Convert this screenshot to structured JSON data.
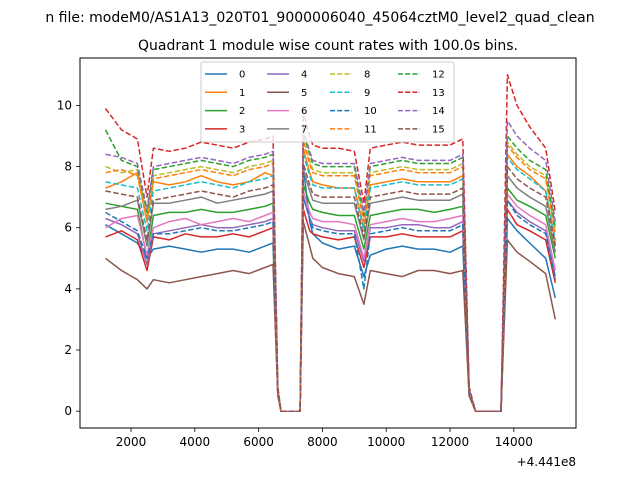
{
  "figure": {
    "suptitle": "n file: modeM0/AS1A13_020T01_9000006040_45064cztM0_level2_quad_clean",
    "title": "Quadrant 1 module wise count rates with 100.0s bins.",
    "offset_label": "+4.441e8"
  },
  "chart_data": {
    "type": "line",
    "title": "Quadrant 1 module wise count rates with 100.0s bins.",
    "xlabel": "",
    "ylabel": "",
    "x_offset": 444100000,
    "xlim": [
      400,
      15950
    ],
    "ylim": [
      -0.55,
      11.55
    ],
    "xticks": [
      2000,
      4000,
      6000,
      8000,
      10000,
      12000,
      14000
    ],
    "xtick_labels": [
      "2000",
      "4000",
      "6000",
      "8000",
      "10000",
      "12000",
      "14000"
    ],
    "yticks": [
      0,
      2,
      4,
      6,
      8,
      10
    ],
    "ytick_labels": [
      "0",
      "2",
      "4",
      "6",
      "8",
      "10"
    ],
    "grid": false,
    "legend": {
      "placement": "top-center",
      "columns": 4
    },
    "x": [
      1200,
      1700,
      2200,
      2500,
      2700,
      3200,
      3700,
      4200,
      4700,
      5200,
      5700,
      6200,
      6450,
      6600,
      6700,
      7000,
      7300,
      7400,
      7600,
      7700,
      8000,
      8500,
      9000,
      9300,
      9500,
      10000,
      10500,
      11000,
      11500,
      12000,
      12400,
      12600,
      12800,
      13200,
      13600,
      13800,
      14100,
      14500,
      15000,
      15300
    ],
    "series": [
      {
        "name": "0",
        "color": "#1f77b4",
        "dashed": false,
        "values": [
          6.1,
          5.8,
          5.5,
          5.0,
          5.3,
          5.4,
          5.3,
          5.2,
          5.3,
          5.3,
          5.2,
          5.4,
          5.5,
          0.6,
          0.0,
          0.0,
          0.0,
          8.0,
          6.2,
          5.8,
          5.5,
          5.3,
          5.4,
          4.4,
          5.1,
          5.3,
          5.4,
          5.3,
          5.3,
          5.2,
          5.4,
          0.6,
          0.0,
          0.0,
          0.0,
          6.3,
          5.9,
          5.5,
          5.0,
          3.7
        ]
      },
      {
        "name": "1",
        "color": "#ff7f0e",
        "dashed": false,
        "values": [
          7.3,
          7.5,
          7.8,
          6.2,
          7.5,
          7.4,
          7.5,
          7.7,
          7.5,
          7.4,
          7.5,
          7.8,
          7.7,
          0.7,
          0.0,
          0.0,
          0.0,
          8.6,
          7.8,
          7.5,
          7.4,
          7.3,
          7.3,
          6.0,
          7.4,
          7.5,
          7.6,
          7.5,
          7.5,
          7.5,
          7.7,
          0.7,
          0.0,
          0.0,
          0.0,
          8.4,
          8.0,
          7.7,
          7.2,
          5.5
        ]
      },
      {
        "name": "2",
        "color": "#2ca02c",
        "dashed": false,
        "values": [
          6.8,
          6.7,
          6.6,
          5.0,
          6.4,
          6.5,
          6.5,
          6.6,
          6.5,
          6.5,
          6.6,
          6.7,
          6.8,
          0.6,
          0.0,
          0.0,
          0.0,
          7.4,
          6.8,
          6.6,
          6.5,
          6.4,
          6.4,
          5.3,
          6.4,
          6.5,
          6.6,
          6.6,
          6.5,
          6.6,
          6.7,
          0.6,
          0.0,
          0.0,
          0.0,
          7.3,
          6.9,
          6.7,
          6.4,
          5.0
        ]
      },
      {
        "name": "3",
        "color": "#d62728",
        "dashed": false,
        "values": [
          5.7,
          5.9,
          5.6,
          4.6,
          5.7,
          5.6,
          5.8,
          5.7,
          5.7,
          5.8,
          5.7,
          5.9,
          6.0,
          0.6,
          0.0,
          0.0,
          0.0,
          6.6,
          5.9,
          5.8,
          5.7,
          5.6,
          5.7,
          4.7,
          5.7,
          5.7,
          5.8,
          5.7,
          5.7,
          5.7,
          5.9,
          0.6,
          0.0,
          0.0,
          0.0,
          6.6,
          6.1,
          5.9,
          5.6,
          4.2
        ]
      },
      {
        "name": "4",
        "color": "#9467bd",
        "dashed": false,
        "values": [
          6.3,
          6.1,
          5.8,
          4.8,
          5.8,
          5.9,
          6.0,
          6.1,
          6.0,
          6.0,
          6.1,
          6.2,
          6.3,
          0.6,
          0.0,
          0.0,
          0.0,
          7.0,
          6.3,
          6.1,
          6.0,
          5.9,
          5.9,
          4.9,
          6.0,
          6.0,
          6.1,
          6.1,
          6.0,
          6.0,
          6.2,
          0.6,
          0.0,
          0.0,
          0.0,
          6.9,
          6.5,
          6.2,
          5.9,
          4.4
        ]
      },
      {
        "name": "5",
        "color": "#8c564b",
        "dashed": false,
        "values": [
          5.0,
          4.6,
          4.3,
          4.0,
          4.3,
          4.2,
          4.3,
          4.4,
          4.5,
          4.6,
          4.5,
          4.7,
          4.8,
          0.5,
          0.0,
          0.0,
          0.0,
          6.2,
          5.4,
          5.0,
          4.7,
          4.5,
          4.4,
          3.5,
          4.6,
          4.5,
          4.4,
          4.6,
          4.6,
          4.5,
          4.6,
          0.5,
          0.0,
          0.0,
          0.0,
          5.6,
          5.2,
          4.9,
          4.5,
          3.0
        ]
      },
      {
        "name": "6",
        "color": "#e377c2",
        "dashed": false,
        "values": [
          6.0,
          6.3,
          6.4,
          5.1,
          6.0,
          6.2,
          6.3,
          6.1,
          6.2,
          6.3,
          6.2,
          6.4,
          6.5,
          0.6,
          0.0,
          0.0,
          0.0,
          7.2,
          6.5,
          6.3,
          6.2,
          6.2,
          6.1,
          5.0,
          6.1,
          6.2,
          6.3,
          6.2,
          6.2,
          6.3,
          6.4,
          0.6,
          0.0,
          0.0,
          0.0,
          7.1,
          6.7,
          6.4,
          6.1,
          4.6
        ]
      },
      {
        "name": "7",
        "color": "#7f7f7f",
        "dashed": false,
        "values": [
          6.6,
          6.7,
          6.9,
          5.4,
          6.8,
          6.8,
          6.9,
          7.0,
          6.8,
          6.9,
          7.0,
          7.1,
          7.2,
          0.6,
          0.0,
          0.0,
          0.0,
          7.9,
          7.2,
          6.9,
          6.8,
          6.8,
          6.8,
          5.6,
          6.8,
          6.9,
          7.0,
          6.9,
          6.9,
          6.9,
          7.1,
          0.6,
          0.0,
          0.0,
          0.0,
          7.7,
          7.3,
          7.0,
          6.7,
          5.2
        ]
      },
      {
        "name": "8",
        "color": "#bcbd22",
        "dashed": true,
        "values": [
          8.0,
          7.8,
          7.9,
          6.4,
          7.7,
          7.8,
          7.9,
          8.0,
          7.9,
          7.8,
          8.0,
          8.1,
          8.2,
          0.7,
          0.0,
          0.0,
          0.0,
          8.9,
          8.2,
          7.9,
          7.8,
          7.8,
          7.8,
          6.3,
          7.8,
          7.9,
          8.0,
          7.9,
          7.9,
          7.9,
          8.1,
          0.7,
          0.0,
          0.0,
          0.0,
          8.8,
          8.4,
          8.0,
          7.7,
          5.9
        ]
      },
      {
        "name": "9",
        "color": "#17becf",
        "dashed": true,
        "values": [
          7.5,
          7.4,
          7.3,
          5.9,
          7.2,
          7.3,
          7.4,
          7.5,
          7.4,
          7.3,
          7.5,
          7.6,
          7.7,
          0.7,
          0.0,
          0.0,
          0.0,
          8.4,
          7.7,
          7.4,
          7.3,
          7.3,
          7.3,
          5.9,
          7.3,
          7.4,
          7.5,
          7.4,
          7.4,
          7.4,
          7.6,
          0.7,
          0.0,
          0.0,
          0.0,
          8.3,
          7.9,
          7.6,
          7.2,
          5.6
        ]
      },
      {
        "name": "10",
        "color": "#1f77b4",
        "dashed": true,
        "values": [
          6.5,
          6.2,
          5.9,
          5.0,
          5.8,
          5.8,
          5.9,
          6.0,
          5.9,
          5.9,
          6.0,
          6.1,
          6.2,
          0.6,
          0.0,
          0.0,
          0.0,
          7.0,
          6.3,
          6.0,
          5.9,
          5.8,
          5.8,
          4.0,
          5.8,
          5.9,
          6.0,
          5.9,
          5.9,
          5.9,
          6.1,
          0.6,
          0.0,
          0.0,
          0.0,
          6.9,
          6.4,
          6.1,
          5.8,
          4.3
        ]
      },
      {
        "name": "11",
        "color": "#ff7f0e",
        "dashed": true,
        "values": [
          7.8,
          7.9,
          7.7,
          6.2,
          7.6,
          7.7,
          7.8,
          7.9,
          7.8,
          7.7,
          7.9,
          8.0,
          8.1,
          0.7,
          0.0,
          0.0,
          0.0,
          8.8,
          8.1,
          7.8,
          7.7,
          7.7,
          7.7,
          6.2,
          7.7,
          7.8,
          7.9,
          7.8,
          7.8,
          7.8,
          8.0,
          0.7,
          0.0,
          0.0,
          0.0,
          8.7,
          8.3,
          7.9,
          7.6,
          5.8
        ]
      },
      {
        "name": "12",
        "color": "#2ca02c",
        "dashed": true,
        "values": [
          9.2,
          8.2,
          8.0,
          6.5,
          7.9,
          8.0,
          8.1,
          8.2,
          8.1,
          8.0,
          8.2,
          8.3,
          8.4,
          0.7,
          0.0,
          0.0,
          0.0,
          9.1,
          8.4,
          8.1,
          8.0,
          8.0,
          8.0,
          6.4,
          8.0,
          8.1,
          8.2,
          8.1,
          8.1,
          8.1,
          8.3,
          0.7,
          0.0,
          0.0,
          0.0,
          9.0,
          8.6,
          8.2,
          7.9,
          6.0
        ]
      },
      {
        "name": "13",
        "color": "#d62728",
        "dashed": true,
        "values": [
          9.9,
          9.2,
          8.9,
          7.0,
          8.6,
          8.5,
          8.6,
          8.8,
          8.7,
          8.6,
          8.8,
          8.9,
          9.0,
          0.8,
          0.0,
          0.0,
          0.0,
          9.8,
          9.0,
          8.7,
          8.6,
          8.6,
          8.5,
          6.8,
          8.6,
          8.7,
          8.8,
          8.7,
          8.7,
          8.7,
          8.9,
          0.8,
          0.0,
          0.0,
          0.0,
          11.0,
          10.0,
          9.3,
          8.6,
          6.5
        ]
      },
      {
        "name": "14",
        "color": "#9467bd",
        "dashed": true,
        "values": [
          8.4,
          8.3,
          8.1,
          6.6,
          8.0,
          8.1,
          8.2,
          8.3,
          8.2,
          8.1,
          8.3,
          8.4,
          8.5,
          0.7,
          0.0,
          0.0,
          0.0,
          9.2,
          8.5,
          8.2,
          8.1,
          8.1,
          8.1,
          6.5,
          8.1,
          8.2,
          8.3,
          8.2,
          8.2,
          8.2,
          8.4,
          0.7,
          0.0,
          0.0,
          0.0,
          9.5,
          9.0,
          8.6,
          8.2,
          6.2
        ]
      },
      {
        "name": "15",
        "color": "#8c564b",
        "dashed": true,
        "values": [
          7.2,
          7.1,
          7.0,
          5.6,
          6.9,
          7.0,
          7.1,
          7.2,
          7.1,
          7.0,
          7.2,
          7.3,
          7.4,
          0.6,
          0.0,
          0.0,
          0.0,
          8.1,
          7.4,
          7.1,
          7.0,
          7.0,
          7.0,
          5.7,
          7.0,
          7.1,
          7.2,
          7.1,
          7.1,
          7.1,
          7.3,
          0.6,
          0.0,
          0.0,
          0.0,
          8.0,
          7.6,
          7.3,
          7.0,
          5.4
        ]
      }
    ]
  }
}
